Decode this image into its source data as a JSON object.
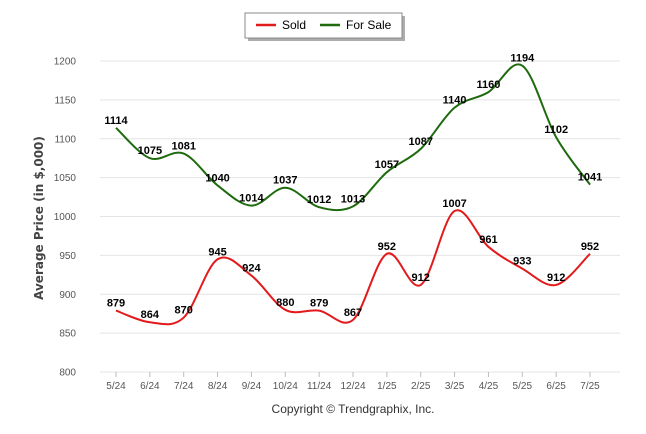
{
  "chart_data": {
    "type": "line",
    "title": "",
    "xlabel": "",
    "ylabel": "Average Price (in $,000)",
    "ylim": [
      800,
      1200
    ],
    "yticks": [
      800,
      850,
      900,
      950,
      1000,
      1050,
      1100,
      1150,
      1200
    ],
    "grid": true,
    "legend_position": "top-center",
    "categories": [
      "5/24",
      "6/24",
      "7/24",
      "8/24",
      "9/24",
      "10/24",
      "11/24",
      "12/24",
      "1/25",
      "2/25",
      "3/25",
      "4/25",
      "5/25",
      "6/25",
      "7/25"
    ],
    "series": [
      {
        "name": "Sold",
        "color": "#e31a1c",
        "values": [
          879,
          864,
          870,
          945,
          924,
          880,
          879,
          867,
          952,
          912,
          1007,
          961,
          933,
          912,
          952
        ]
      },
      {
        "name": "For Sale",
        "color": "#1e6b0e",
        "values": [
          1114,
          1075,
          1081,
          1040,
          1014,
          1037,
          1012,
          1013,
          1057,
          1087,
          1140,
          1160,
          1194,
          1102,
          1041
        ]
      }
    ],
    "credit": "Copyright © Trendgraphix, Inc."
  }
}
